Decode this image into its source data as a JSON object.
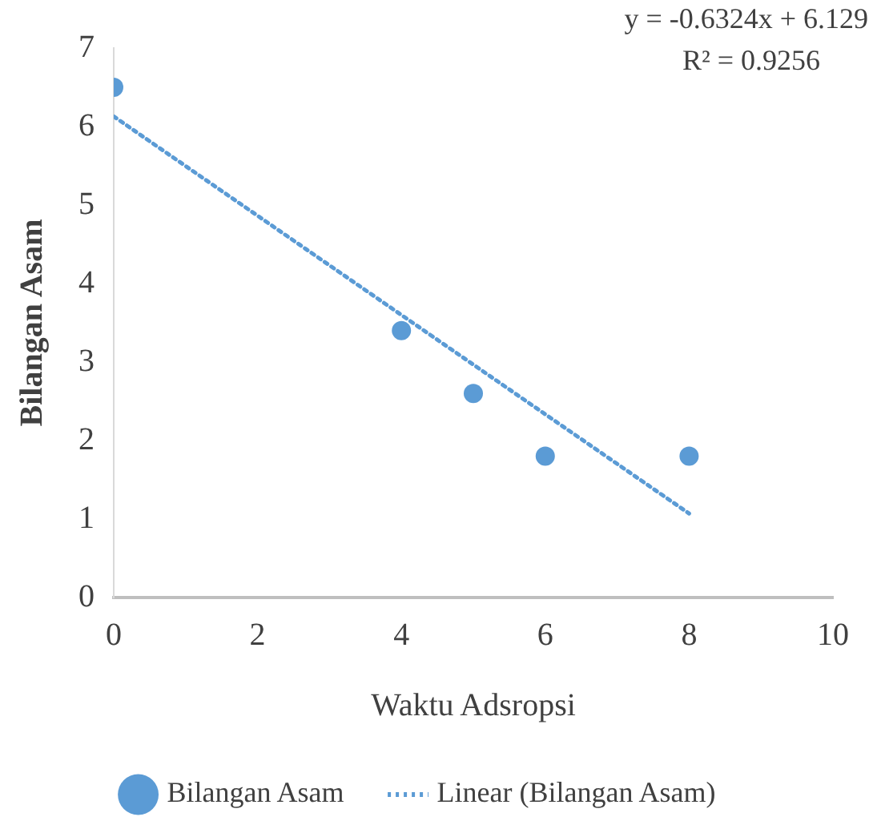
{
  "chart_data": {
    "type": "scatter",
    "xlabel": "Waktu Adsropsi",
    "ylabel": "Bilangan Asam",
    "annotations": [
      "y = -0.6324x + 6.129",
      "R² = 0.9256"
    ],
    "xlim": [
      0,
      10
    ],
    "xticks": [
      0,
      2,
      4,
      6,
      8,
      10
    ],
    "ylim": [
      0,
      7
    ],
    "yticks": [
      0,
      1,
      2,
      3,
      4,
      5,
      6,
      7
    ],
    "grid": false,
    "legend": "bottom",
    "marker": "circle",
    "series": [
      {
        "name": "Bilangan Asam",
        "color": "#5b9bd5",
        "x": [
          0,
          4,
          5,
          6,
          8
        ],
        "values": [
          6.5,
          3.4,
          2.6,
          1.8,
          1.8
        ]
      },
      {
        "name": "Linear (Bilangan Asam)",
        "type": "line",
        "line_style": "dotted",
        "marker": "none",
        "color": "#5b9bd5",
        "x": [
          0,
          8
        ],
        "values": [
          6.129,
          1.07
        ]
      }
    ]
  }
}
